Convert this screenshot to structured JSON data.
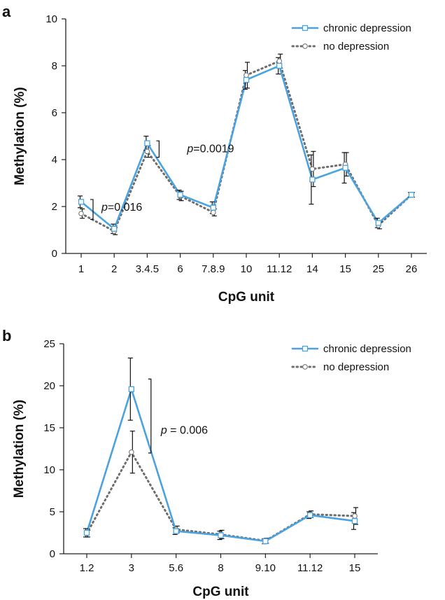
{
  "figure": {
    "colors": {
      "chronic": "#4aa3df",
      "none": "#6e6e6e",
      "axis": "#222222",
      "error": "#111111"
    }
  },
  "chart_data": [
    {
      "panel": "a",
      "type": "line",
      "xlabel": "CpG unit",
      "ylabel": "Methylation (%)",
      "ylim": [
        0,
        10
      ],
      "yticks": [
        "0",
        "2",
        "4",
        "6",
        "8",
        "10"
      ],
      "categories": [
        "1",
        "2",
        "3.4.5",
        "6",
        "7.8.9",
        "10",
        "11.12",
        "14",
        "15",
        "25",
        "26"
      ],
      "legend_position": "top-right",
      "grid": false,
      "series": [
        {
          "name": "chronic depression",
          "style": "solid",
          "marker": "square",
          "values": [
            2.2,
            1.05,
            4.7,
            2.5,
            1.95,
            7.4,
            8.0,
            3.15,
            3.65,
            1.3,
            2.5
          ],
          "errors": [
            0.25,
            0.2,
            0.3,
            0.2,
            0.25,
            0.4,
            0.35,
            1.05,
            0.65,
            0.2,
            0.1
          ]
        },
        {
          "name": "no depression",
          "style": "dotted",
          "marker": "circle",
          "values": [
            1.7,
            0.95,
            4.35,
            2.45,
            1.75,
            7.6,
            8.2,
            3.6,
            3.8,
            1.2,
            2.5
          ],
          "errors": [
            0.2,
            0.15,
            0.25,
            0.2,
            0.15,
            0.55,
            0.3,
            0.75,
            0.5,
            0.15,
            0.1
          ]
        }
      ],
      "annotations": [
        {
          "p": "p",
          "text": "=0.016",
          "at_category": "1",
          "y_value": 2.0
        },
        {
          "p": "p",
          "text": "=0.0019",
          "at_category": "3.4.5",
          "y_value": 4.5
        }
      ]
    },
    {
      "panel": "b",
      "type": "line",
      "xlabel": "CpG unit",
      "ylabel": "Methylation (%)",
      "ylim": [
        0,
        25
      ],
      "yticks": [
        "0",
        "5",
        "10",
        "15",
        "20",
        "25"
      ],
      "categories": [
        "1.2",
        "3",
        "5.6",
        "8",
        "9.10",
        "11.12",
        "15"
      ],
      "legend_position": "top-right",
      "grid": false,
      "series": [
        {
          "name": "chronic depression",
          "style": "solid",
          "marker": "square",
          "values": [
            2.5,
            19.6,
            2.7,
            2.2,
            1.5,
            4.6,
            3.9
          ],
          "errors": [
            0.5,
            3.7,
            0.4,
            0.5,
            0.3,
            0.4,
            1.0
          ]
        },
        {
          "name": "no depression",
          "style": "dotted",
          "marker": "circle",
          "values": [
            2.4,
            12.1,
            2.9,
            2.3,
            1.55,
            4.7,
            4.5
          ],
          "errors": [
            0.4,
            2.5,
            0.4,
            0.5,
            0.3,
            0.4,
            1.0
          ]
        }
      ],
      "annotations": [
        {
          "p": "p",
          "text": " = 0.006",
          "at_category": "3",
          "y_value": 14.8
        }
      ]
    }
  ]
}
